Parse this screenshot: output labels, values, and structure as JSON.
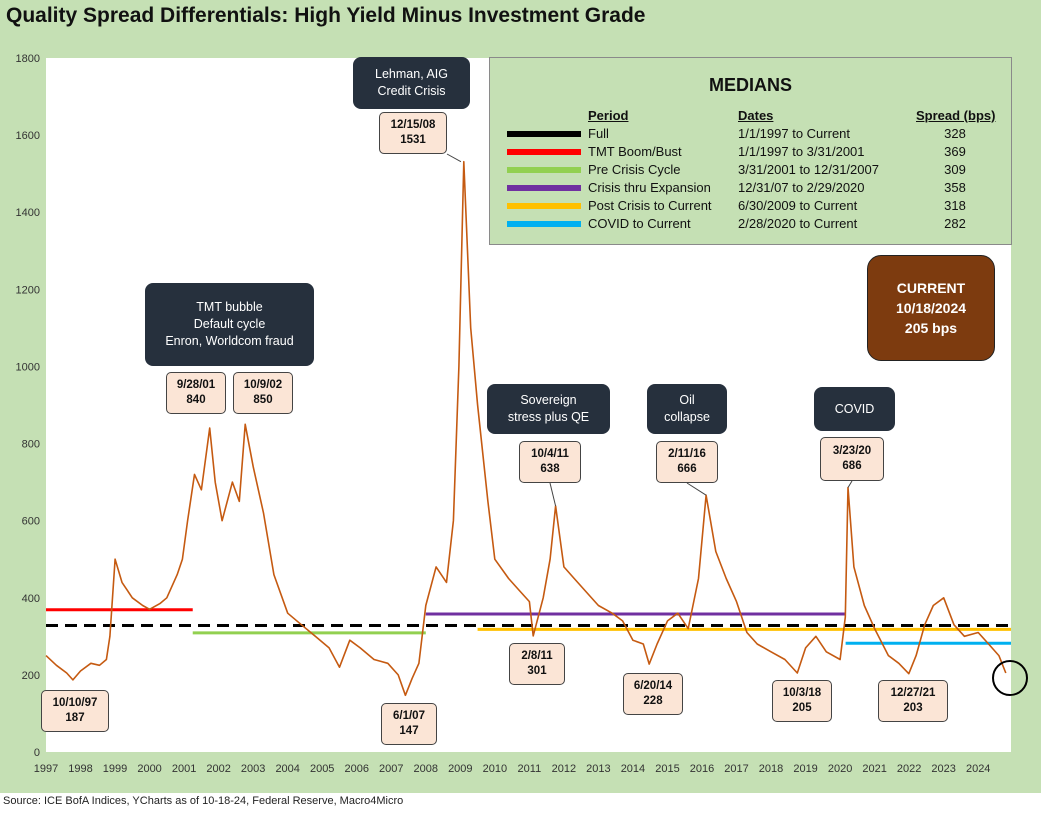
{
  "title": "Quality Spread Differentials: High Yield Minus Investment Grade",
  "source": "Source: ICE BofA Indices, YCharts as of 10-18-24, Federal Reserve, Macro4Micro",
  "chart_data": {
    "type": "line",
    "title": "Quality Spread Differentials: High Yield Minus Investment Grade",
    "xlabel": "",
    "ylabel": "",
    "xlim": [
      1997.0,
      2024.95
    ],
    "ylim": [
      0,
      1800
    ],
    "y_ticks": [
      0,
      200,
      400,
      600,
      800,
      1000,
      1200,
      1400,
      1600,
      1800
    ],
    "x_ticks": [
      "1997",
      "1998",
      "1999",
      "2000",
      "2001",
      "2002",
      "2003",
      "2004",
      "2005",
      "2006",
      "2007",
      "2008",
      "2009",
      "2010",
      "2011",
      "2012",
      "2013",
      "2014",
      "2015",
      "2016",
      "2017",
      "2018",
      "2019",
      "2020",
      "2021",
      "2022",
      "2023",
      "2024"
    ],
    "grid": false,
    "line_color": "#c55a11",
    "series": [
      {
        "x": [
          1997.0,
          1997.3,
          1997.6,
          1997.78,
          1998.0,
          1998.3,
          1998.55,
          1998.75,
          1998.85,
          1999.0,
          1999.2,
          1999.5,
          1999.8,
          2000.0,
          2000.3,
          2000.5,
          2000.8,
          2000.95,
          2001.1,
          2001.3,
          2001.5,
          2001.74,
          2001.9,
          2002.1,
          2002.4,
          2002.6,
          2002.77,
          2003.0,
          2003.3,
          2003.6,
          2004.0,
          2004.4,
          2004.8,
          2005.2,
          2005.5,
          2005.8,
          2006.1,
          2006.5,
          2006.9,
          2007.2,
          2007.41,
          2007.6,
          2007.8,
          2008.0,
          2008.3,
          2008.6,
          2008.8,
          2008.96,
          2009.1,
          2009.3,
          2009.5,
          2009.8,
          2010.0,
          2010.4,
          2010.7,
          2011.0,
          2011.11,
          2011.4,
          2011.6,
          2011.76,
          2012.0,
          2012.3,
          2012.6,
          2013.0,
          2013.4,
          2013.7,
          2014.0,
          2014.3,
          2014.47,
          2014.7,
          2015.0,
          2015.3,
          2015.6,
          2015.9,
          2016.12,
          2016.4,
          2016.7,
          2017.0,
          2017.3,
          2017.6,
          2018.0,
          2018.4,
          2018.76,
          2019.0,
          2019.3,
          2019.6,
          2020.0,
          2020.15,
          2020.23,
          2020.4,
          2020.7,
          2021.0,
          2021.4,
          2021.7,
          2021.99,
          2022.2,
          2022.45,
          2022.7,
          2023.0,
          2023.3,
          2023.6,
          2024.0,
          2024.3,
          2024.6,
          2024.8
        ],
        "y": [
          250,
          225,
          205,
          187,
          210,
          230,
          225,
          240,
          300,
          500,
          440,
          400,
          380,
          370,
          385,
          400,
          460,
          500,
          600,
          720,
          680,
          840,
          700,
          600,
          700,
          650,
          850,
          740,
          620,
          460,
          360,
          330,
          300,
          270,
          220,
          290,
          270,
          240,
          230,
          200,
          147,
          190,
          230,
          380,
          480,
          440,
          600,
          1000,
          1531,
          1100,
          900,
          650,
          500,
          450,
          420,
          390,
          301,
          400,
          500,
          638,
          480,
          450,
          420,
          380,
          360,
          340,
          290,
          280,
          228,
          280,
          340,
          360,
          320,
          450,
          666,
          520,
          450,
          390,
          310,
          280,
          260,
          240,
          205,
          270,
          300,
          260,
          240,
          350,
          686,
          480,
          380,
          320,
          250,
          230,
          203,
          250,
          330,
          380,
          400,
          330,
          300,
          310,
          280,
          250,
          205
        ]
      }
    ],
    "events": [
      {
        "date": "10/10/97",
        "value": "187"
      },
      {
        "date": "9/28/01",
        "value": "840"
      },
      {
        "date": "10/9/02",
        "value": "850"
      },
      {
        "date": "6/1/07",
        "value": "147"
      },
      {
        "date": "12/15/08",
        "value": "1531"
      },
      {
        "date": "2/8/11",
        "value": "301"
      },
      {
        "date": "10/4/11",
        "value": "638"
      },
      {
        "date": "6/20/14",
        "value": "228"
      },
      {
        "date": "2/11/16",
        "value": "666"
      },
      {
        "date": "10/3/18",
        "value": "205"
      },
      {
        "date": "3/23/20",
        "value": "686"
      },
      {
        "date": "12/27/21",
        "value": "203"
      }
    ],
    "median_lines": [
      {
        "name": "Full",
        "value": 328,
        "x_start": 1997.0,
        "x_end": 2024.95,
        "color": "#000000",
        "dashed": true
      },
      {
        "name": "TMT Boom/Bust",
        "value": 369,
        "x_start": 1997.0,
        "x_end": 2001.25,
        "color": "#ff0000",
        "dashed": false
      },
      {
        "name": "Pre Crisis Cycle",
        "value": 309,
        "x_start": 2001.25,
        "x_end": 2008.0,
        "color": "#92d050",
        "dashed": false
      },
      {
        "name": "Crisis thru Expansion",
        "value": 358,
        "x_start": 2008.0,
        "x_end": 2020.16,
        "color": "#7030a0",
        "dashed": false
      },
      {
        "name": "Post Crisis to Current",
        "value": 318,
        "x_start": 2009.5,
        "x_end": 2024.95,
        "color": "#ffc000",
        "dashed": false
      },
      {
        "name": "COVID to Current",
        "value": 282,
        "x_start": 2020.16,
        "x_end": 2024.95,
        "color": "#00b0f0",
        "dashed": false
      }
    ]
  },
  "legend": {
    "title": "MEDIANS",
    "headers": {
      "period": "Period",
      "dates": "Dates",
      "spread": "Spread (bps)"
    },
    "rows": [
      {
        "period": "Full",
        "dates": "1/1/1997  to Current",
        "spread": "328",
        "color": "#000000"
      },
      {
        "period": "TMT  Boom/Bust",
        "dates": "1/1/1997  to 3/31/2001",
        "spread": "369",
        "color": "#ff0000"
      },
      {
        "period": "Pre Crisis Cycle",
        "dates": "3/31/2001  to 12/31/2007",
        "spread": "309",
        "color": "#92d050"
      },
      {
        "period": "Crisis thru Expansion",
        "dates": "12/31/07 to 2/29/2020",
        "spread": "358",
        "color": "#7030a0"
      },
      {
        "period": "Post Crisis to Current",
        "dates": "6/30/2009  to Current",
        "spread": "318",
        "color": "#ffc000"
      },
      {
        "period": "COVID to Current",
        "dates": " 2/28/2020  to Current",
        "spread": "282",
        "color": "#00b0f0"
      }
    ]
  },
  "event_boxes": {
    "tmt": [
      "TMT bubble",
      "Default cycle",
      "Enron, Worldcom fraud"
    ],
    "lehman": [
      "Lehman, AIG",
      "Credit Crisis"
    ],
    "sovereign": [
      "Sovereign",
      "stress plus QE"
    ],
    "oil": [
      "Oil",
      "collapse"
    ],
    "covid": [
      "COVID"
    ]
  },
  "current_box": [
    "CURRENT",
    "10/18/2024",
    "205 bps"
  ]
}
